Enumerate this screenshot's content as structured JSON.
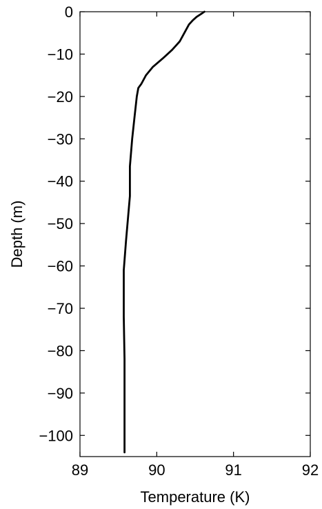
{
  "chart_data": {
    "type": "line",
    "xlabel": "Temperature (K)",
    "ylabel": "Depth (m)",
    "xlim": [
      89,
      92
    ],
    "ylim": [
      -105,
      0
    ],
    "xticks": [
      89,
      90,
      91,
      92
    ],
    "yticks": [
      0,
      -10,
      -20,
      -30,
      -40,
      -50,
      -60,
      -70,
      -80,
      -90,
      -100
    ],
    "xtick_labels": [
      "89",
      "90",
      "91",
      "92"
    ],
    "ytick_labels": [
      "0",
      "−10",
      "−20",
      "−30",
      "−40",
      "−50",
      "−60",
      "−70",
      "−80",
      "−90",
      "−100"
    ],
    "grid": false,
    "legend": "none",
    "line_color": "#000000",
    "series": [
      {
        "x": [
          90.62,
          90.58,
          90.52,
          90.47,
          90.42,
          90.36,
          90.3,
          90.2,
          90.08,
          89.95,
          89.86,
          89.8,
          89.76,
          89.74,
          89.71,
          89.68,
          89.65,
          89.65,
          89.6,
          89.57,
          89.57,
          89.58,
          89.58,
          89.58
        ],
        "y": [
          0,
          -0.5,
          -1.2,
          -2,
          -3,
          -5,
          -7,
          -9,
          -11,
          -13,
          -15,
          -17,
          -18,
          -20,
          -25,
          -30,
          -36.5,
          -43.5,
          -54,
          -61,
          -72,
          -82,
          -98,
          -104
        ]
      }
    ]
  }
}
